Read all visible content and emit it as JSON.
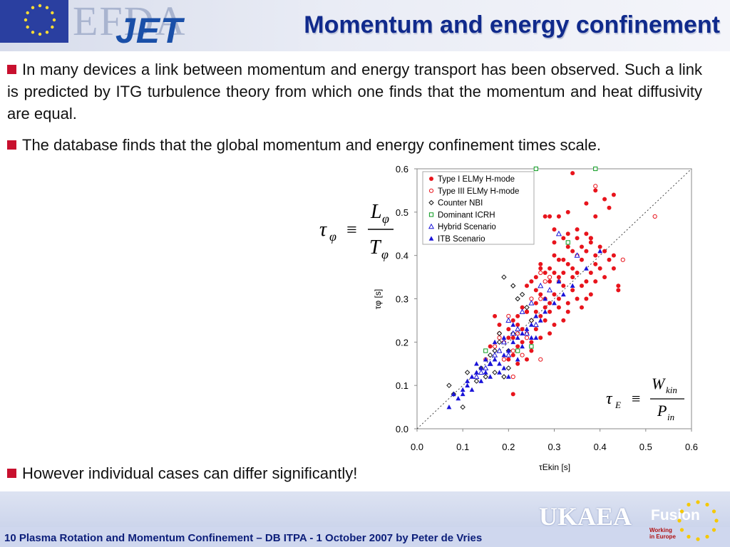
{
  "header": {
    "logo_efda": "EFDA",
    "logo_jet": "JET",
    "title": "Momentum and energy confinement"
  },
  "bullets": [
    "In many devices a link between momentum and energy transport has been observed. Such a link is predicted by ITG turbulence theory from which one finds that the momentum and heat diffusivity are equal.",
    "The database finds that the global momentum and energy confinement times scale.",
    "However individual cases can differ significantly!"
  ],
  "footer": {
    "text": "10  Plasma Rotation and Momentum Confinement – DB ITPA - 1 October 2007 by Peter de Vries",
    "logo_ukaea": "UKAEA",
    "logo_fusion": "Fusion",
    "tagline": [
      "Working",
      "in Europe"
    ]
  },
  "colors": {
    "title": "#102a8c",
    "bullet_square": "#c8102e",
    "red_series": "#e8141c",
    "blue_series": "#1a14d8",
    "green_series": "#0a9a1e"
  },
  "chart_data": {
    "type": "scatter",
    "xlabel": "τEkin [s]",
    "ylabel": "τφ [s]",
    "xlim": [
      0,
      0.6
    ],
    "ylim": [
      0,
      0.6
    ],
    "xticks": [
      "0.0",
      "0.1",
      "0.2",
      "0.3",
      "0.4",
      "0.5",
      "0.6"
    ],
    "yticks": [
      "0.0",
      "0.1",
      "0.2",
      "0.3",
      "0.4",
      "0.5",
      "0.6"
    ],
    "grid": false,
    "legend_position": "top-left",
    "reference_line": {
      "from": [
        0,
        0
      ],
      "to": [
        0.6,
        0.6
      ],
      "style": "dotted"
    },
    "series": [
      {
        "name": "Type I ELMy H-mode",
        "marker": "filled-circle",
        "color": "#e8141c",
        "points": [
          [
            0.34,
            0.59
          ],
          [
            0.39,
            0.55
          ],
          [
            0.41,
            0.53
          ],
          [
            0.43,
            0.54
          ],
          [
            0.42,
            0.51
          ],
          [
            0.37,
            0.52
          ],
          [
            0.35,
            0.46
          ],
          [
            0.29,
            0.49
          ],
          [
            0.3,
            0.46
          ],
          [
            0.31,
            0.49
          ],
          [
            0.33,
            0.5
          ],
          [
            0.28,
            0.49
          ],
          [
            0.32,
            0.44
          ],
          [
            0.33,
            0.45
          ],
          [
            0.37,
            0.45
          ],
          [
            0.39,
            0.49
          ],
          [
            0.38,
            0.43
          ],
          [
            0.4,
            0.42
          ],
          [
            0.41,
            0.41
          ],
          [
            0.43,
            0.4
          ],
          [
            0.36,
            0.42
          ],
          [
            0.34,
            0.41
          ],
          [
            0.35,
            0.4
          ],
          [
            0.32,
            0.39
          ],
          [
            0.33,
            0.38
          ],
          [
            0.3,
            0.4
          ],
          [
            0.31,
            0.39
          ],
          [
            0.29,
            0.37
          ],
          [
            0.3,
            0.36
          ],
          [
            0.28,
            0.36
          ],
          [
            0.27,
            0.37
          ],
          [
            0.26,
            0.35
          ],
          [
            0.25,
            0.34
          ],
          [
            0.24,
            0.33
          ],
          [
            0.26,
            0.32
          ],
          [
            0.27,
            0.31
          ],
          [
            0.28,
            0.3
          ],
          [
            0.3,
            0.31
          ],
          [
            0.32,
            0.33
          ],
          [
            0.34,
            0.32
          ],
          [
            0.36,
            0.33
          ],
          [
            0.35,
            0.3
          ],
          [
            0.33,
            0.29
          ],
          [
            0.31,
            0.28
          ],
          [
            0.29,
            0.27
          ],
          [
            0.27,
            0.26
          ],
          [
            0.25,
            0.25
          ],
          [
            0.24,
            0.27
          ],
          [
            0.22,
            0.26
          ],
          [
            0.23,
            0.28
          ],
          [
            0.21,
            0.25
          ],
          [
            0.22,
            0.24
          ],
          [
            0.2,
            0.23
          ],
          [
            0.24,
            0.22
          ],
          [
            0.26,
            0.23
          ],
          [
            0.27,
            0.21
          ],
          [
            0.29,
            0.22
          ],
          [
            0.3,
            0.24
          ],
          [
            0.32,
            0.25
          ],
          [
            0.33,
            0.27
          ],
          [
            0.36,
            0.28
          ],
          [
            0.37,
            0.3
          ],
          [
            0.38,
            0.31
          ],
          [
            0.37,
            0.34
          ],
          [
            0.38,
            0.36
          ],
          [
            0.39,
            0.38
          ],
          [
            0.4,
            0.37
          ],
          [
            0.41,
            0.35
          ],
          [
            0.42,
            0.39
          ],
          [
            0.35,
            0.36
          ],
          [
            0.34,
            0.35
          ],
          [
            0.31,
            0.35
          ],
          [
            0.26,
            0.29
          ],
          [
            0.25,
            0.2
          ],
          [
            0.23,
            0.2
          ],
          [
            0.22,
            0.19
          ],
          [
            0.21,
            0.17
          ],
          [
            0.22,
            0.15
          ],
          [
            0.25,
            0.18
          ],
          [
            0.24,
            0.16
          ],
          [
            0.19,
            0.2
          ],
          [
            0.18,
            0.22
          ],
          [
            0.17,
            0.26
          ],
          [
            0.2,
            0.21
          ],
          [
            0.28,
            0.25
          ],
          [
            0.44,
            0.32
          ],
          [
            0.44,
            0.33
          ],
          [
            0.39,
            0.34
          ],
          [
            0.38,
            0.44
          ],
          [
            0.36,
            0.39
          ],
          [
            0.34,
            0.37
          ],
          [
            0.32,
            0.36
          ],
          [
            0.29,
            0.34
          ],
          [
            0.23,
            0.23
          ],
          [
            0.21,
            0.21
          ],
          [
            0.18,
            0.24
          ],
          [
            0.16,
            0.19
          ],
          [
            0.2,
            0.16
          ],
          [
            0.27,
            0.38
          ],
          [
            0.3,
            0.43
          ],
          [
            0.33,
            0.42
          ],
          [
            0.35,
            0.44
          ],
          [
            0.37,
            0.41
          ],
          [
            0.39,
            0.4
          ],
          [
            0.43,
            0.37
          ],
          [
            0.29,
            0.29
          ],
          [
            0.31,
            0.3
          ],
          [
            0.26,
            0.27
          ],
          [
            0.28,
            0.28
          ],
          [
            0.21,
            0.08
          ]
        ]
      },
      {
        "name": "Type III ELMy H-mode",
        "marker": "open-circle",
        "color": "#e8141c",
        "points": [
          [
            0.39,
            0.56
          ],
          [
            0.52,
            0.49
          ],
          [
            0.38,
            0.44
          ],
          [
            0.45,
            0.39
          ],
          [
            0.27,
            0.36
          ],
          [
            0.28,
            0.34
          ],
          [
            0.27,
            0.3
          ],
          [
            0.24,
            0.27
          ],
          [
            0.2,
            0.26
          ],
          [
            0.22,
            0.22
          ],
          [
            0.24,
            0.21
          ],
          [
            0.25,
            0.19
          ],
          [
            0.18,
            0.21
          ],
          [
            0.17,
            0.19
          ],
          [
            0.21,
            0.18
          ],
          [
            0.23,
            0.17
          ],
          [
            0.27,
            0.16
          ],
          [
            0.21,
            0.12
          ],
          [
            0.19,
            0.16
          ],
          [
            0.15,
            0.16
          ],
          [
            0.29,
            0.35
          ],
          [
            0.31,
            0.34
          ],
          [
            0.25,
            0.3
          ]
        ]
      },
      {
        "name": "Counter NBI",
        "marker": "open-diamond",
        "color": "#111111",
        "points": [
          [
            0.07,
            0.1
          ],
          [
            0.08,
            0.08
          ],
          [
            0.1,
            0.05
          ],
          [
            0.11,
            0.13
          ],
          [
            0.13,
            0.11
          ],
          [
            0.14,
            0.14
          ],
          [
            0.15,
            0.12
          ],
          [
            0.16,
            0.17
          ],
          [
            0.17,
            0.13
          ],
          [
            0.18,
            0.2
          ],
          [
            0.19,
            0.12
          ],
          [
            0.2,
            0.18
          ],
          [
            0.22,
            0.3
          ],
          [
            0.23,
            0.31
          ],
          [
            0.24,
            0.28
          ],
          [
            0.25,
            0.25
          ],
          [
            0.21,
            0.22
          ],
          [
            0.2,
            0.14
          ],
          [
            0.18,
            0.22
          ],
          [
            0.17,
            0.18
          ],
          [
            0.21,
            0.33
          ],
          [
            0.19,
            0.35
          ]
        ]
      },
      {
        "name": "Dominant ICRH",
        "marker": "open-square",
        "color": "#0a9a1e",
        "points": [
          [
            0.26,
            0.6
          ],
          [
            0.39,
            0.6
          ],
          [
            0.33,
            0.43
          ],
          [
            0.15,
            0.18
          ],
          [
            0.22,
            0.18
          ],
          [
            0.25,
            0.19
          ]
        ]
      },
      {
        "name": "Hybrid Scenario",
        "marker": "open-triangle",
        "color": "#1a14d8",
        "points": [
          [
            0.31,
            0.45
          ],
          [
            0.35,
            0.4
          ],
          [
            0.27,
            0.33
          ],
          [
            0.29,
            0.32
          ],
          [
            0.25,
            0.29
          ],
          [
            0.23,
            0.27
          ],
          [
            0.2,
            0.25
          ],
          [
            0.22,
            0.23
          ],
          [
            0.21,
            0.22
          ],
          [
            0.19,
            0.2
          ],
          [
            0.18,
            0.18
          ],
          [
            0.17,
            0.17
          ],
          [
            0.2,
            0.17
          ],
          [
            0.16,
            0.15
          ],
          [
            0.15,
            0.14
          ],
          [
            0.14,
            0.13
          ],
          [
            0.13,
            0.12
          ],
          [
            0.24,
            0.22
          ],
          [
            0.26,
            0.24
          ]
        ]
      },
      {
        "name": "ITB Scenario",
        "marker": "filled-triangle",
        "color": "#1a14d8",
        "points": [
          [
            0.07,
            0.05
          ],
          [
            0.1,
            0.08
          ],
          [
            0.1,
            0.09
          ],
          [
            0.11,
            0.11
          ],
          [
            0.12,
            0.12
          ],
          [
            0.13,
            0.13
          ],
          [
            0.14,
            0.14
          ],
          [
            0.15,
            0.13
          ],
          [
            0.16,
            0.15
          ],
          [
            0.17,
            0.16
          ],
          [
            0.18,
            0.15
          ],
          [
            0.19,
            0.17
          ],
          [
            0.2,
            0.18
          ],
          [
            0.21,
            0.2
          ],
          [
            0.22,
            0.21
          ],
          [
            0.23,
            0.22
          ],
          [
            0.24,
            0.23
          ],
          [
            0.25,
            0.24
          ],
          [
            0.26,
            0.26
          ],
          [
            0.27,
            0.25
          ],
          [
            0.28,
            0.27
          ],
          [
            0.3,
            0.29
          ],
          [
            0.32,
            0.31
          ],
          [
            0.34,
            0.33
          ],
          [
            0.37,
            0.37
          ],
          [
            0.4,
            0.41
          ],
          [
            0.09,
            0.07
          ],
          [
            0.12,
            0.09
          ],
          [
            0.14,
            0.11
          ],
          [
            0.16,
            0.12
          ],
          [
            0.18,
            0.13
          ],
          [
            0.2,
            0.12
          ],
          [
            0.22,
            0.16
          ],
          [
            0.19,
            0.21
          ],
          [
            0.21,
            0.24
          ],
          [
            0.17,
            0.2
          ],
          [
            0.15,
            0.16
          ],
          [
            0.13,
            0.15
          ],
          [
            0.23,
            0.19
          ],
          [
            0.25,
            0.21
          ],
          [
            0.26,
            0.21
          ],
          [
            0.28,
            0.3
          ],
          [
            0.31,
            0.34
          ],
          [
            0.19,
            0.14
          ],
          [
            0.11,
            0.1
          ],
          [
            0.08,
            0.08
          ]
        ]
      }
    ]
  },
  "equations": {
    "tau": "τ",
    "phi": "φ",
    "E": "E",
    "equiv": "≡",
    "L": "L",
    "T": "T",
    "W": "W",
    "kin": "kin",
    "P": "P",
    "in": "in"
  }
}
